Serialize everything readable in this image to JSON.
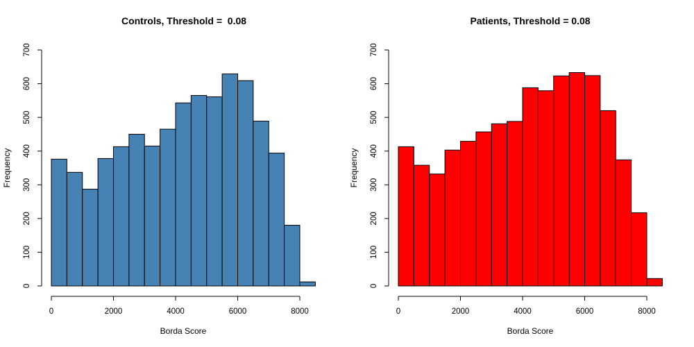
{
  "chart_data": [
    {
      "type": "bar",
      "title": "Controls, Threshold =  0.08",
      "xlabel": "Borda Score",
      "ylabel": "Frequency",
      "bin_width": 500,
      "bin_starts": [
        0,
        500,
        1000,
        1500,
        2000,
        2500,
        3000,
        3500,
        4000,
        4500,
        5000,
        5500,
        6000,
        6500,
        7000,
        7500,
        8000
      ],
      "values": [
        376,
        337,
        287,
        378,
        413,
        450,
        415,
        465,
        543,
        565,
        561,
        629,
        609,
        489,
        394,
        180,
        12
      ],
      "xlim": [
        0,
        8500
      ],
      "ylim": [
        0,
        700
      ],
      "xticks": [
        0,
        2000,
        4000,
        6000,
        8000
      ],
      "yticks": [
        0,
        100,
        200,
        300,
        400,
        500,
        600,
        700
      ],
      "xtick_labels": [
        "0",
        "2000",
        "4000",
        "6000",
        "8000"
      ],
      "ytick_labels": [
        "0",
        "100",
        "200",
        "300",
        "400",
        "500",
        "600",
        "700"
      ],
      "color": "#4682b4",
      "grid": false
    },
    {
      "type": "bar",
      "title": "Patients, Threshold = 0.08",
      "xlabel": "Borda Score",
      "ylabel": "Frequency",
      "bin_width": 500,
      "bin_starts": [
        0,
        500,
        1000,
        1500,
        2000,
        2500,
        3000,
        3500,
        4000,
        4500,
        5000,
        5500,
        6000,
        6500,
        7000,
        7500,
        8000
      ],
      "values": [
        413,
        358,
        332,
        403,
        429,
        457,
        481,
        488,
        588,
        579,
        623,
        633,
        624,
        520,
        374,
        217,
        22
      ],
      "xlim": [
        0,
        8500
      ],
      "ylim": [
        0,
        700
      ],
      "xticks": [
        0,
        2000,
        4000,
        6000,
        8000
      ],
      "yticks": [
        0,
        100,
        200,
        300,
        400,
        500,
        600,
        700
      ],
      "xtick_labels": [
        "0",
        "2000",
        "4000",
        "6000",
        "8000"
      ],
      "ytick_labels": [
        "0",
        "100",
        "200",
        "300",
        "400",
        "500",
        "600",
        "700"
      ],
      "color": "#ff0000",
      "grid": false
    }
  ]
}
